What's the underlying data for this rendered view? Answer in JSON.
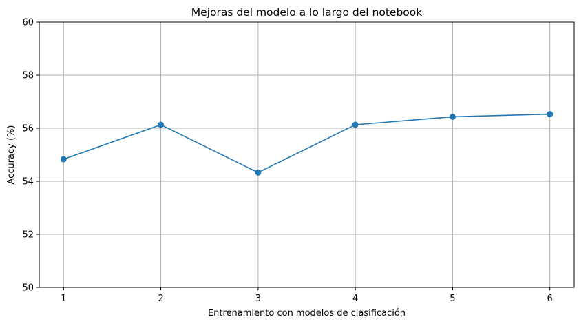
{
  "chart_data": {
    "type": "line",
    "title": "Mejoras del modelo a lo largo del notebook",
    "xlabel": "Entrenamiento con modelos de clasificación",
    "ylabel": "Accuracy (%)",
    "x": [
      1,
      2,
      3,
      4,
      5,
      6
    ],
    "x_ticks": [
      "1",
      "2",
      "3",
      "4",
      "5",
      "6"
    ],
    "y_ticks": [
      "50",
      "52",
      "54",
      "56",
      "58",
      "60"
    ],
    "ylim": [
      50,
      60
    ],
    "xlim": [
      0.75,
      6.25
    ],
    "grid": true,
    "marker": "circle",
    "series": [
      {
        "values": [
          54.83,
          56.13,
          54.33,
          56.13,
          56.43,
          56.53
        ],
        "color": "#1f77b4"
      }
    ]
  }
}
